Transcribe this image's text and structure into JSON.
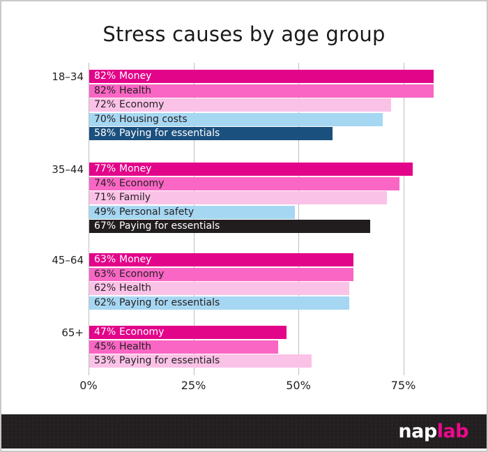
{
  "title": "Stress causes by age group",
  "footer": {
    "logo_prefix": "nap",
    "logo_suffix": "lab"
  },
  "palette": {
    "magenta": "#e2058a",
    "pink": "#f966c4",
    "light_pink": "#fbc2e7",
    "light_blue": "#a6d7f2",
    "navy": "#1a507e",
    "black_bar": "#211d1e",
    "footer_bg": "#231f20",
    "gridline": "#bdbdbd",
    "dark_text": "#231f20",
    "light_text": "#ffffff",
    "logo_pink": "#ec098c"
  },
  "chart_data": {
    "type": "bar",
    "orientation": "horizontal",
    "unit": "%",
    "xlim": [
      0,
      83
    ],
    "grid": true,
    "x_ticks": [
      {
        "value": 0,
        "label": "0%"
      },
      {
        "value": 25,
        "label": "25%"
      },
      {
        "value": 50,
        "label": "50%"
      },
      {
        "value": 75,
        "label": "75%"
      }
    ],
    "groups": [
      {
        "label": "18–34",
        "bars": [
          {
            "value": 82,
            "value_label": "82%",
            "label": "Money",
            "color": "#e2058a",
            "text_color": "#ffffff"
          },
          {
            "value": 82,
            "value_label": "82%",
            "label": "Health",
            "color": "#f966c4",
            "text_color": "#231f20"
          },
          {
            "value": 72,
            "value_label": "72%",
            "label": "Economy",
            "color": "#fbc2e7",
            "text_color": "#231f20"
          },
          {
            "value": 70,
            "value_label": "70%",
            "label": "Housing costs",
            "color": "#a6d7f2",
            "text_color": "#231f20"
          },
          {
            "value": 58,
            "value_label": "58%",
            "label": "Paying for essentials",
            "color": "#1a507e",
            "text_color": "#ffffff"
          }
        ]
      },
      {
        "label": "35–44",
        "bars": [
          {
            "value": 77,
            "value_label": "77%",
            "label": "Money",
            "color": "#e2058a",
            "text_color": "#ffffff"
          },
          {
            "value": 74,
            "value_label": "74%",
            "label": "Economy",
            "color": "#f966c4",
            "text_color": "#231f20"
          },
          {
            "value": 71,
            "value_label": "71%",
            "label": "Family",
            "color": "#fbc2e7",
            "text_color": "#231f20"
          },
          {
            "value": 49,
            "value_label": "49%",
            "label": "Personal safety",
            "color": "#a6d7f2",
            "text_color": "#231f20"
          },
          {
            "value": 67,
            "value_label": "67%",
            "label": "Paying for essentials",
            "color": "#211d1e",
            "text_color": "#ffffff"
          }
        ]
      },
      {
        "label": "45–64",
        "bars": [
          {
            "value": 63,
            "value_label": "63%",
            "label": "Money",
            "color": "#e2058a",
            "text_color": "#ffffff"
          },
          {
            "value": 63,
            "value_label": "63%",
            "label": "Economy",
            "color": "#f966c4",
            "text_color": "#231f20"
          },
          {
            "value": 62,
            "value_label": "62%",
            "label": "Health",
            "color": "#fbc2e7",
            "text_color": "#231f20"
          },
          {
            "value": 62,
            "value_label": "62%",
            "label": "Paying for essentials",
            "color": "#a6d7f2",
            "text_color": "#231f20"
          }
        ]
      },
      {
        "label": "65+",
        "bars": [
          {
            "value": 47,
            "value_label": "47%",
            "label": "Economy",
            "color": "#e2058a",
            "text_color": "#ffffff"
          },
          {
            "value": 45,
            "value_label": "45%",
            "label": "Health",
            "color": "#f966c4",
            "text_color": "#231f20"
          },
          {
            "value": 53,
            "value_label": "53%",
            "label": "Paying for essentials",
            "color": "#fbc2e7",
            "text_color": "#231f20"
          }
        ]
      }
    ]
  }
}
